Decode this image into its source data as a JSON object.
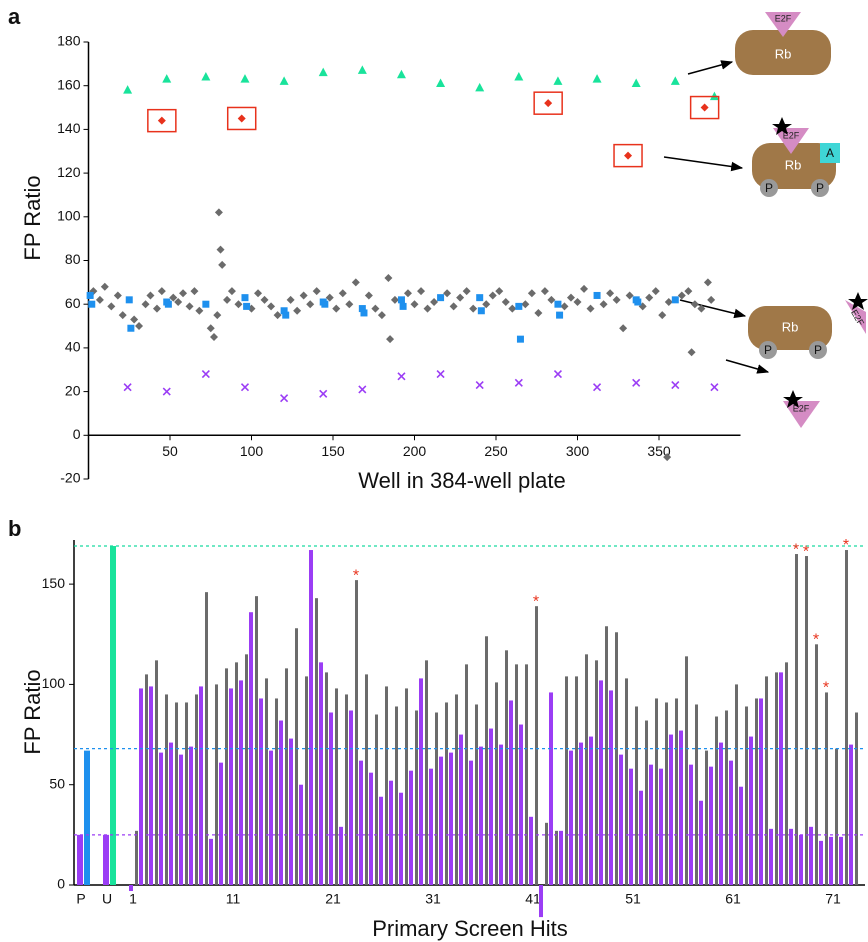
{
  "panels": [
    "a",
    "b"
  ],
  "diagram": {
    "rb": "Rb",
    "e2f": "E2F",
    "phospho": "P",
    "a": "A"
  },
  "chart_data": [
    {
      "type": "scatter",
      "xlabel": "Well in 384-well plate",
      "ylabel": "FP Ratio",
      "xlim": [
        0,
        400
      ],
      "ylim": [
        -20,
        180
      ],
      "xticks": [
        50,
        100,
        150,
        200,
        250,
        300,
        350
      ],
      "yticks": [
        -20,
        0,
        20,
        40,
        60,
        80,
        100,
        120,
        140,
        160,
        180
      ],
      "series": [
        {
          "color": "#6b6b6b",
          "marker": "diamond",
          "x": [
            3,
            7,
            10,
            14,
            18,
            21,
            28,
            31,
            35,
            38,
            42,
            45,
            52,
            55,
            58,
            62,
            65,
            68,
            75,
            77,
            79,
            80,
            81,
            82,
            85,
            88,
            92,
            100,
            104,
            108,
            112,
            116,
            124,
            128,
            132,
            136,
            140,
            148,
            152,
            156,
            160,
            164,
            172,
            176,
            180,
            184,
            185,
            188,
            196,
            200,
            204,
            208,
            212,
            220,
            224,
            228,
            232,
            236,
            244,
            248,
            252,
            256,
            260,
            268,
            272,
            276,
            280,
            284,
            292,
            296,
            300,
            304,
            308,
            316,
            320,
            324,
            328,
            332,
            340,
            344,
            348,
            352,
            355,
            356,
            364,
            368,
            370,
            372,
            376,
            380,
            382
          ],
          "values": [
            66,
            62,
            68,
            59,
            64,
            55,
            53,
            50,
            60,
            64,
            58,
            66,
            63,
            61,
            65,
            59,
            66,
            57,
            49,
            45,
            55,
            102,
            85,
            78,
            62,
            66,
            60,
            58,
            65,
            62,
            59,
            55,
            62,
            57,
            64,
            60,
            66,
            63,
            58,
            65,
            60,
            70,
            64,
            58,
            55,
            72,
            44,
            62,
            65,
            60,
            66,
            58,
            61,
            65,
            59,
            63,
            66,
            58,
            60,
            64,
            66,
            61,
            58,
            60,
            65,
            56,
            66,
            62,
            59,
            63,
            61,
            67,
            58,
            60,
            65,
            62,
            49,
            64,
            59,
            63,
            66,
            55,
            -10,
            61,
            64,
            66,
            38,
            60,
            58,
            70,
            62
          ]
        },
        {
          "color": "#1e90ee",
          "marker": "square",
          "x": [
            1,
            2,
            25,
            26,
            48,
            49,
            72,
            96,
            97,
            120,
            121,
            144,
            145,
            168,
            169,
            192,
            193,
            216,
            240,
            241,
            264,
            265,
            288,
            289,
            312,
            336,
            337,
            360
          ],
          "values": [
            64,
            60,
            62,
            49,
            61,
            60,
            60,
            63,
            59,
            57,
            55,
            61,
            60,
            58,
            56,
            62,
            59,
            63,
            63,
            57,
            59,
            44,
            60,
            55,
            64,
            62,
            61,
            62
          ]
        },
        {
          "color": "#19e39b",
          "marker": "triangle",
          "x": [
            24,
            48,
            72,
            96,
            120,
            144,
            168,
            192,
            216,
            240,
            264,
            288,
            312,
            336,
            360,
            384
          ],
          "values": [
            158,
            163,
            164,
            163,
            162,
            166,
            167,
            165,
            161,
            159,
            164,
            162,
            163,
            161,
            162,
            155
          ]
        },
        {
          "color": "#9b3df5",
          "marker": "x",
          "x": [
            24,
            48,
            72,
            96,
            120,
            144,
            168,
            192,
            216,
            240,
            264,
            288,
            312,
            336,
            360,
            384
          ],
          "values": [
            22,
            20,
            28,
            22,
            17,
            19,
            21,
            27,
            28,
            23,
            24,
            28,
            22,
            24,
            23,
            22
          ]
        },
        {
          "color": "#e8321c",
          "marker": "diamond",
          "boxed": true,
          "x": [
            45,
            94,
            282,
            331,
            378
          ],
          "values": [
            144,
            145,
            152,
            128,
            150
          ]
        }
      ]
    },
    {
      "type": "bar",
      "xlabel": "Primary Screen Hits",
      "ylabel": "FP Ratio",
      "ylim": [
        0,
        172
      ],
      "yticks": [
        0,
        50,
        100,
        150
      ],
      "categories": [
        "P",
        "U",
        "1",
        null,
        null,
        null,
        null,
        null,
        null,
        null,
        null,
        null,
        "11",
        null,
        null,
        null,
        null,
        null,
        null,
        null,
        null,
        null,
        "21",
        null,
        null,
        null,
        null,
        null,
        null,
        null,
        null,
        null,
        "31",
        null,
        null,
        null,
        null,
        null,
        null,
        null,
        null,
        null,
        "41",
        null,
        null,
        null,
        null,
        null,
        null,
        null,
        null,
        null,
        "51",
        null,
        null,
        null,
        null,
        null,
        null,
        null,
        null,
        null,
        "61",
        null,
        null,
        null,
        null,
        null,
        null,
        null,
        null,
        null,
        "71",
        null,
        null
      ],
      "series": [
        {
          "color": "#9b3df5",
          "values": [
            25,
            25,
            -3,
            98,
            99,
            66,
            71,
            65,
            69,
            99,
            23,
            61,
            98,
            102,
            136,
            93,
            67,
            82,
            73,
            50,
            167,
            111,
            86,
            29,
            87,
            62,
            56,
            44,
            52,
            46,
            57,
            103,
            58,
            64,
            66,
            75,
            62,
            69,
            78,
            70,
            92,
            80,
            34,
            -16,
            96,
            27,
            67,
            71,
            74,
            102,
            97,
            65,
            58,
            47,
            60,
            58,
            75,
            77,
            60,
            42,
            59,
            71,
            62,
            49,
            74,
            93,
            28,
            106,
            28,
            25,
            29,
            22,
            24,
            24,
            70
          ]
        },
        {
          "color": "#6b6b6b",
          "values": [
            null,
            null,
            27,
            105,
            112,
            95,
            91,
            91,
            95,
            146,
            100,
            108,
            111,
            115,
            144,
            103,
            93,
            108,
            128,
            104,
            143,
            106,
            98,
            95,
            152,
            105,
            85,
            99,
            89,
            98,
            87,
            112,
            86,
            91,
            95,
            110,
            90,
            124,
            101,
            117,
            110,
            110,
            139,
            31,
            27,
            104,
            104,
            115,
            112,
            129,
            126,
            103,
            89,
            82,
            93,
            91,
            93,
            114,
            90,
            67,
            84,
            87,
            100,
            89,
            93,
            104,
            106,
            111,
            165,
            164,
            120,
            96,
            68,
            167,
            86
          ]
        },
        {
          "color": "#1e90ee",
          "values": [
            67,
            null,
            null,
            null,
            null,
            null,
            null,
            null,
            null,
            null,
            null,
            null,
            null,
            null,
            null,
            null,
            null,
            null,
            null,
            null,
            null,
            null,
            null,
            null,
            null,
            null,
            null,
            null,
            null,
            null,
            null,
            null,
            null,
            null,
            null,
            null,
            null,
            null,
            null,
            null,
            null,
            null,
            null,
            null,
            null,
            null,
            null,
            null,
            null,
            null,
            null,
            null,
            null,
            null,
            null,
            null,
            null,
            null,
            null,
            null,
            null,
            null,
            null,
            null,
            null,
            null,
            null,
            null,
            null,
            null,
            null,
            null,
            null,
            null,
            null
          ]
        },
        {
          "color": "#19e39b",
          "values": [
            null,
            169,
            null,
            null,
            null,
            null,
            null,
            null,
            null,
            null,
            null,
            null,
            null,
            null,
            null,
            null,
            null,
            null,
            null,
            null,
            null,
            null,
            null,
            null,
            null,
            null,
            null,
            null,
            null,
            null,
            null,
            null,
            null,
            null,
            null,
            null,
            null,
            null,
            null,
            null,
            null,
            null,
            null,
            null,
            null,
            null,
            null,
            null,
            null,
            null,
            null,
            null,
            null,
            null,
            null,
            null,
            null,
            null,
            null,
            null,
            null,
            null,
            null,
            null,
            null,
            null,
            null,
            null,
            null,
            null,
            null,
            null,
            null,
            null,
            null
          ]
        }
      ],
      "reference_lines": [
        {
          "value": 169,
          "color": "#19d9a0"
        },
        {
          "value": 68,
          "color": "#1e90ee"
        },
        {
          "value": 25,
          "color": "#9b3df5"
        }
      ],
      "starred": {
        "text": "*",
        "color": "#e8321c",
        "indices": [
          24,
          42,
          68,
          69,
          70,
          71,
          73
        ]
      }
    }
  ]
}
